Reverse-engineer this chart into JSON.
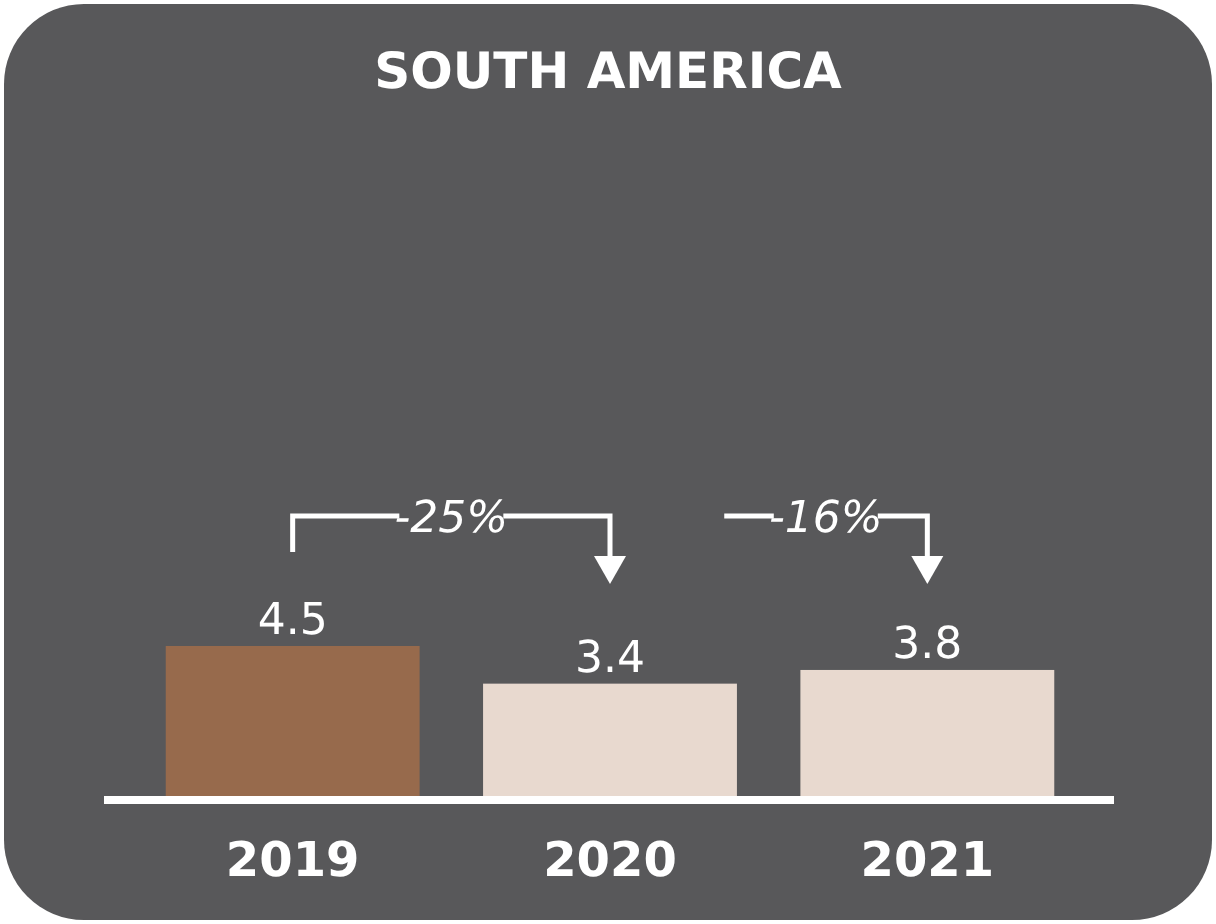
{
  "chart_data": {
    "type": "bar",
    "title": "SOUTH AMERICA",
    "categories": [
      "2019",
      "2020",
      "2021"
    ],
    "values": [
      4.5,
      3.4,
      3.8
    ],
    "colors": [
      "#976a4c",
      "#e8d9cf",
      "#e8d9cf"
    ],
    "data_labels": true,
    "annotations": [
      "-25%",
      "-16%"
    ]
  }
}
